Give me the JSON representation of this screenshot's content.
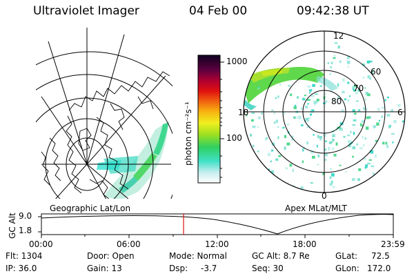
{
  "header": {
    "instrument": "Ultraviolet Imager",
    "date": "04 Feb 00",
    "time": "09:42:38 UT"
  },
  "colorbar": {
    "unit_label": "photon cm⁻²s⁻¹",
    "ticks": [
      "1000",
      "100"
    ]
  },
  "geo_map": {
    "label": "Geographic Lat/Lon"
  },
  "polar_map": {
    "label": "Apex MLat/MLT",
    "hour_labels": {
      "top": "12",
      "left": "18",
      "right": "6",
      "bottom": "0"
    },
    "lat_labels": [
      "60",
      "70",
      "80"
    ]
  },
  "timeline": {
    "ylabel": "GC Alt",
    "yticks": [
      "9.0",
      "1.8"
    ],
    "xticks": [
      "00:00",
      "06:00",
      "12:00",
      "18:00",
      "23:59"
    ],
    "current_fraction": 0.404
  },
  "info": {
    "flt": "Flt: 1304",
    "ip": "IP: 36.0",
    "door": "Door: Open",
    "gain": "Gain: 13",
    "mode": "Mode: Normal",
    "dsp": "Dsp:",
    "dsp_val": "-3.7",
    "gcalt": "GC Alt: 8.7 Re",
    "seq": "Seq: 30",
    "glat": "GLat:",
    "glat_val": "72.5",
    "glon": "GLon:",
    "glon_val": "172.0"
  },
  "colors": {
    "red_marker": "#e01010"
  }
}
